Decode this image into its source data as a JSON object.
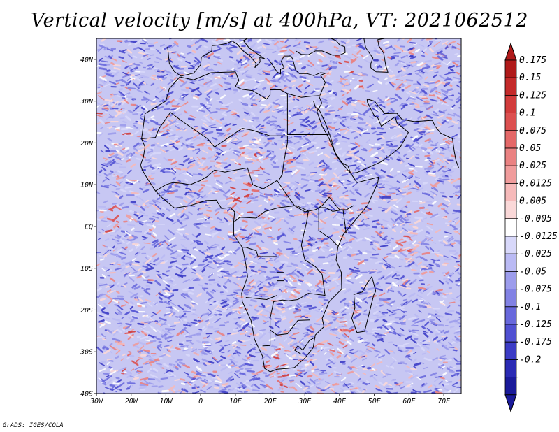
{
  "title": "Vertical velocity [m/s] at 400hPa, VT: 2021062512",
  "credit": "GrADS: IGES/COLA",
  "map": {
    "variable": "Vertical velocity",
    "units": "m/s",
    "level": "400hPa",
    "valid_time": "2021062512",
    "lon_range": [
      -30,
      75
    ],
    "lat_range": [
      -40,
      45
    ],
    "lon_ticks": [
      {
        "value": -30,
        "label": "30W"
      },
      {
        "value": -20,
        "label": "20W"
      },
      {
        "value": -10,
        "label": "10W"
      },
      {
        "value": 0,
        "label": "0"
      },
      {
        "value": 10,
        "label": "10E"
      },
      {
        "value": 20,
        "label": "20E"
      },
      {
        "value": 30,
        "label": "30E"
      },
      {
        "value": 40,
        "label": "40E"
      },
      {
        "value": 50,
        "label": "50E"
      },
      {
        "value": 60,
        "label": "60E"
      },
      {
        "value": 70,
        "label": "70E"
      }
    ],
    "lat_ticks": [
      {
        "value": 40,
        "label": "40N"
      },
      {
        "value": 30,
        "label": "30N"
      },
      {
        "value": 20,
        "label": "20N"
      },
      {
        "value": 10,
        "label": "10N"
      },
      {
        "value": 0,
        "label": "EQ"
      },
      {
        "value": -10,
        "label": "10S"
      },
      {
        "value": -20,
        "label": "20S"
      },
      {
        "value": -30,
        "label": "30S"
      },
      {
        "value": -40,
        "label": "40S"
      }
    ]
  },
  "colorbar": {
    "labels": [
      "0.175",
      "0.15",
      "0.125",
      "0.1",
      "0.075",
      "0.05",
      "0.025",
      "0.0125",
      "0.005",
      "-0.005",
      "-0.0125",
      "-0.025",
      "-0.05",
      "-0.075",
      "-0.1",
      "-0.125",
      "-0.175",
      "-0.2"
    ],
    "colors": [
      "#b01a1a",
      "#c42a2a",
      "#d23c3c",
      "#dc5050",
      "#e46868",
      "#ea8282",
      "#f09c9c",
      "#f6baba",
      "#fad8d8",
      "#ffffff",
      "#d8d8fa",
      "#babaf4",
      "#9c9cec",
      "#8282e4",
      "#6868dc",
      "#5050d2",
      "#3c3cc6",
      "#2a2ab4",
      "#1a1a9a"
    ]
  }
}
